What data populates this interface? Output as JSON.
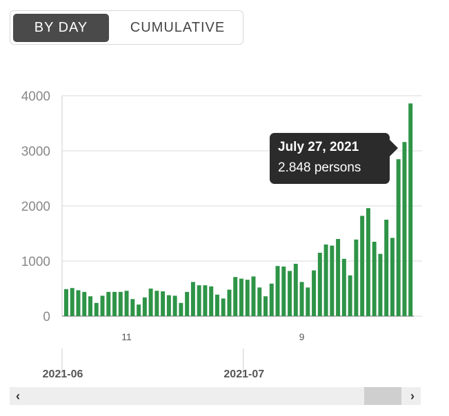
{
  "toggle": {
    "by_day_label": "BY DAY",
    "cumulative_label": "CUMULATIVE"
  },
  "tooltip": {
    "date": "July 27, 2021",
    "value": "2.848  persons"
  },
  "scrollbar": {
    "left_icon": "chevron-left-icon",
    "right_icon": "chevron-right-icon"
  },
  "colors": {
    "bar": "#2e9447",
    "tooltip_bg": "#2b2b2b",
    "toggle_active_bg": "#4a4a4a"
  },
  "chart_data": {
    "type": "bar",
    "title": "",
    "ylim": [
      0,
      4000
    ],
    "yticks": [
      "0",
      "1000",
      "2000",
      "3000",
      "4000"
    ],
    "xticks": [
      {
        "label": "11",
        "index": 10
      },
      {
        "label": "9",
        "index": 39
      }
    ],
    "month_labels": [
      {
        "label": "2021-06",
        "index": 0
      },
      {
        "label": "2021-07",
        "index": 30
      }
    ],
    "values": [
      490,
      510,
      470,
      440,
      360,
      240,
      370,
      440,
      440,
      440,
      460,
      310,
      210,
      340,
      500,
      460,
      450,
      380,
      370,
      240,
      440,
      620,
      560,
      560,
      540,
      390,
      320,
      480,
      710,
      680,
      660,
      720,
      520,
      360,
      590,
      910,
      900,
      820,
      950,
      620,
      520,
      830,
      1150,
      1300,
      1280,
      1400,
      1040,
      740,
      1390,
      1820,
      1960,
      1350,
      1130,
      1750,
      1420,
      2848,
      3160,
      3860
    ],
    "grid": true,
    "highlight_index": 55
  }
}
